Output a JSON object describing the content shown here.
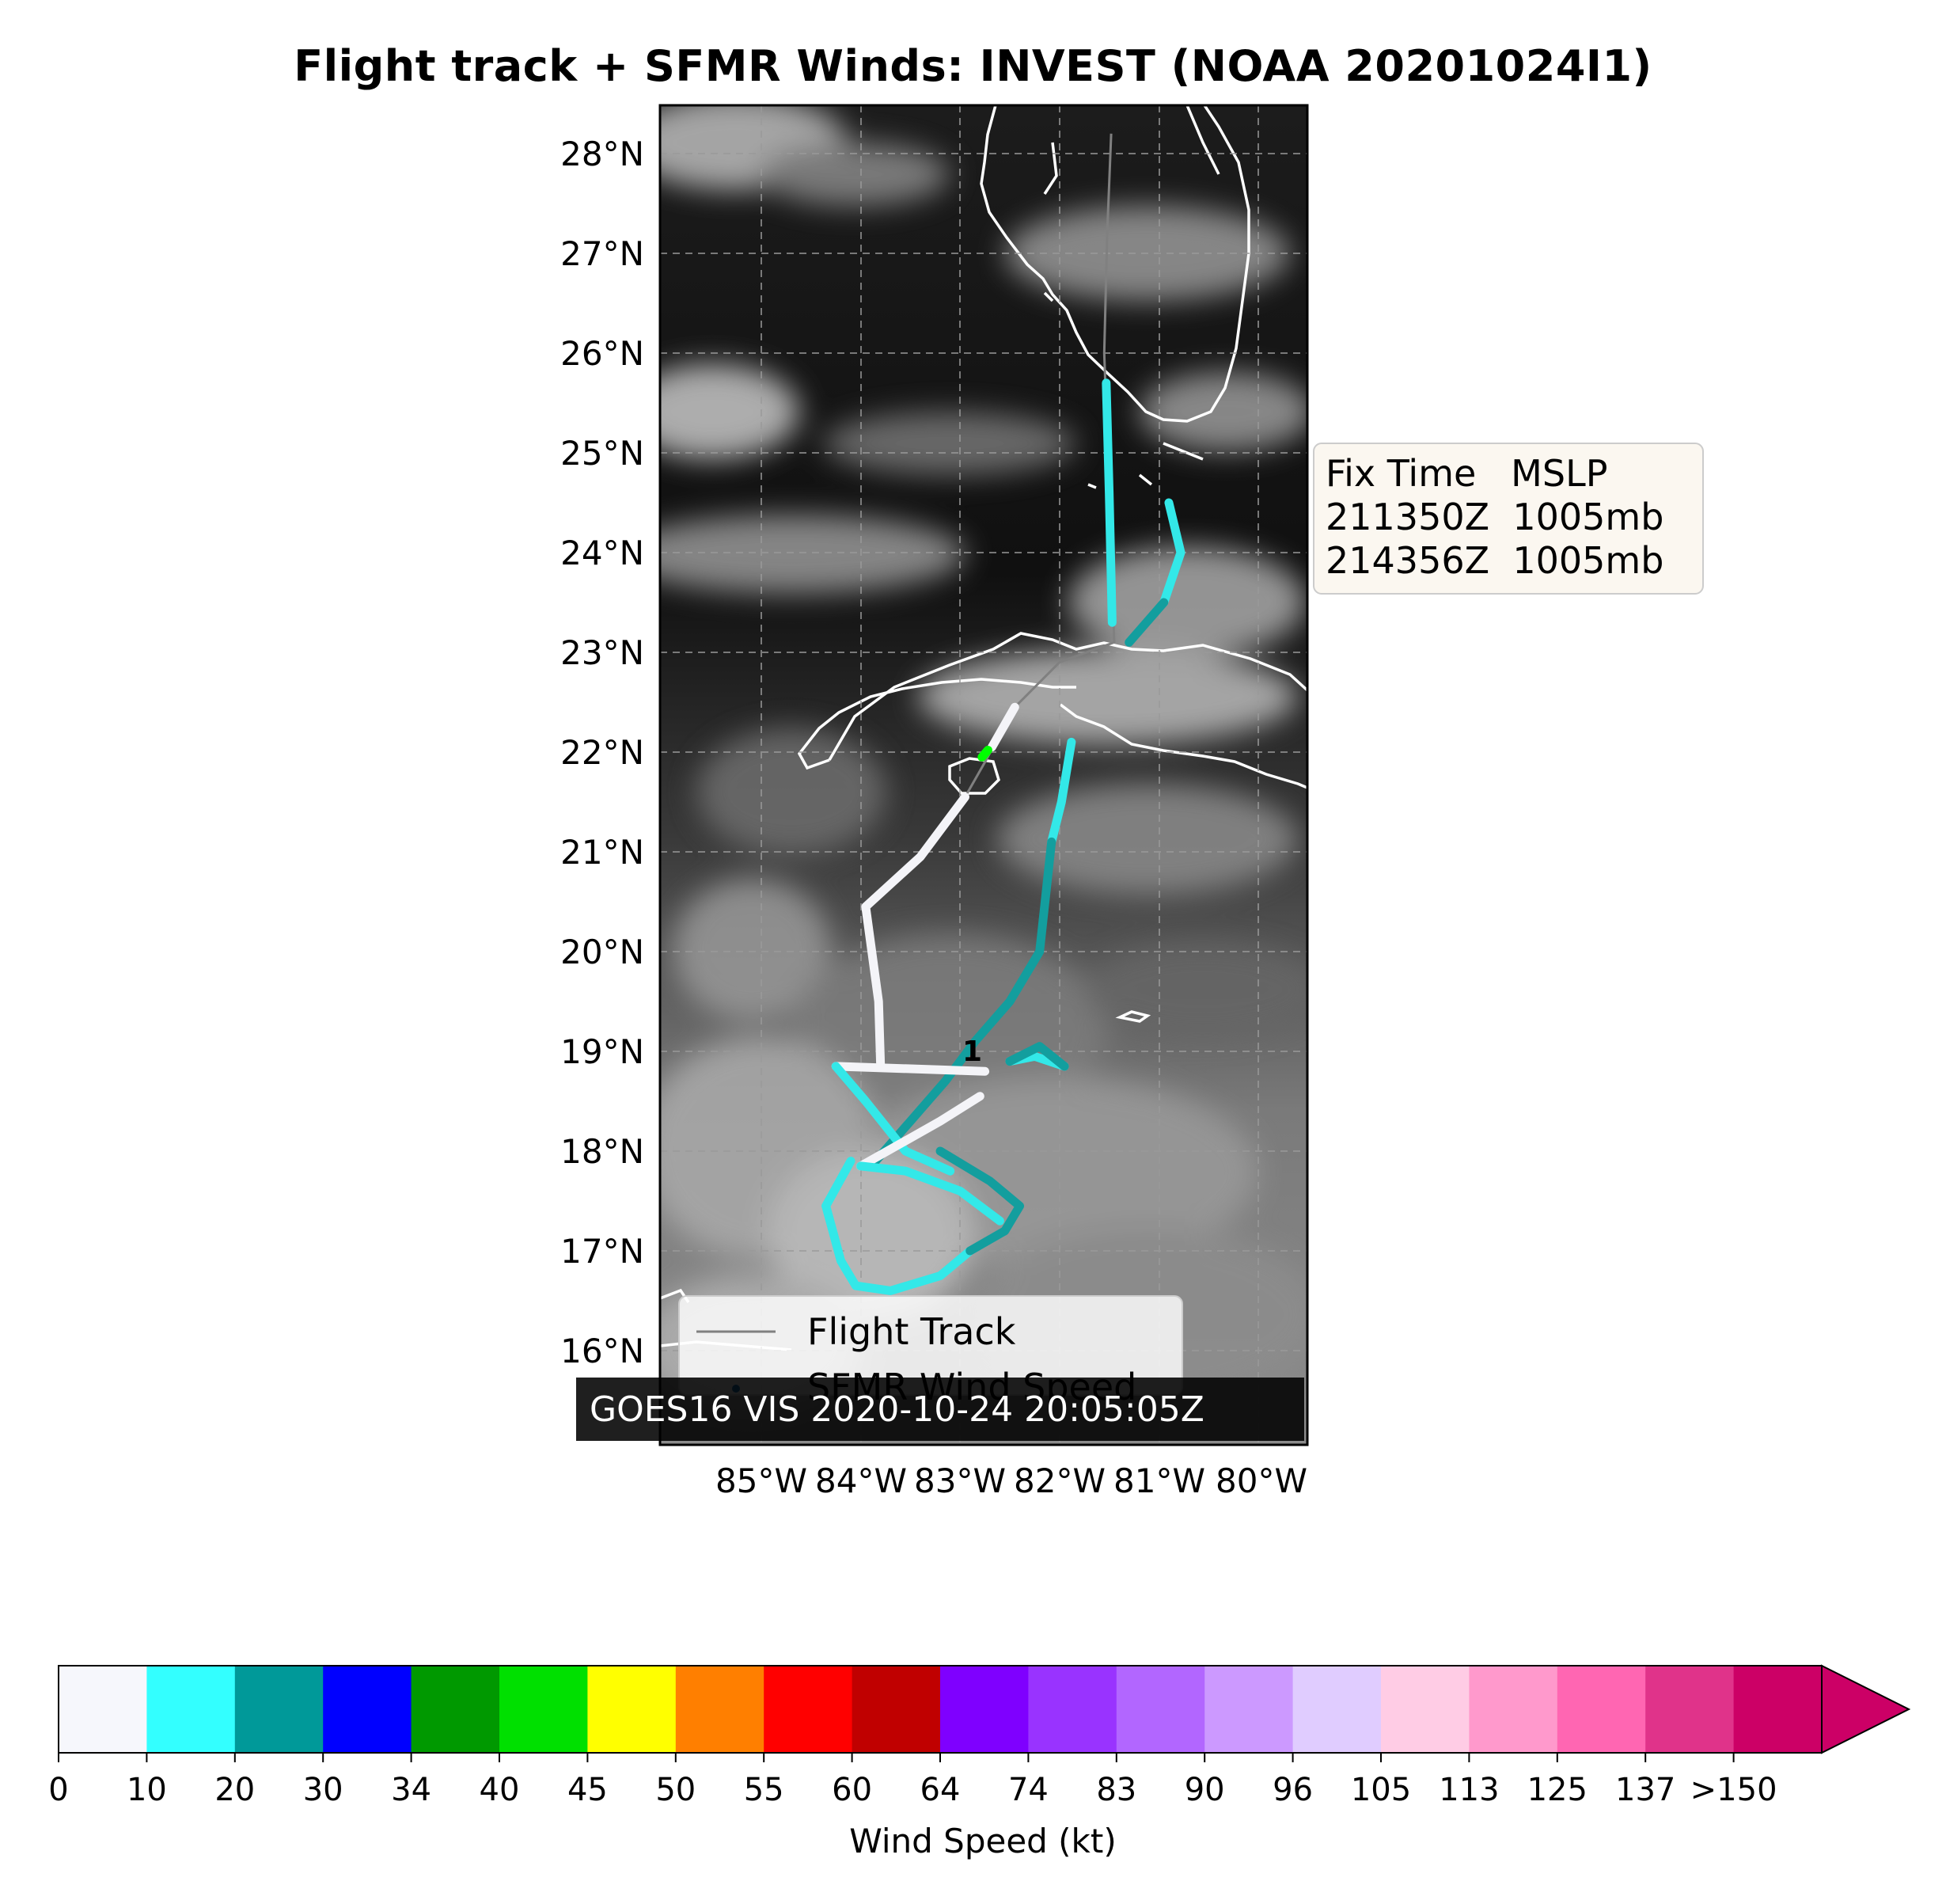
{
  "title": "Flight track + SFMR Winds: INVEST (NOAA 20201024I1)",
  "map": {
    "lat_labels": [
      "28°N",
      "27°N",
      "26°N",
      "25°N",
      "24°N",
      "23°N",
      "22°N",
      "21°N",
      "20°N",
      "19°N",
      "18°N",
      "17°N",
      "16°N"
    ],
    "lon_labels": [
      "85°W",
      "84°W",
      "83°W",
      "82°W",
      "81°W",
      "80°W"
    ],
    "lat_range": [
      15.0,
      28.5
    ],
    "lon_range": [
      -85.9,
      -79.4
    ],
    "gridlines": true,
    "background": "GOES16 visible satellite imagery (grayscale)",
    "image_label": "GOES16 VIS 2020-10-24 20:05:05Z",
    "center_marker": "1"
  },
  "fix_box": {
    "header": "Fix Time   MSLP",
    "rows": [
      "211350Z  1005mb",
      "214356Z  1005mb"
    ]
  },
  "legend": {
    "track_label": "Flight Track",
    "sfmr_label": "SFMR Wind Speed",
    "track_color": "#808080",
    "sfmr_color": "#1f77b4"
  },
  "colorbar": {
    "title": "Wind Speed (kt)",
    "labels": [
      "0",
      "10",
      "20",
      "30",
      "34",
      "40",
      "45",
      "50",
      "55",
      "60",
      "64",
      "74",
      "83",
      "90",
      "96",
      "105",
      "113",
      "125",
      "137",
      ">150"
    ],
    "colors": [
      "#f6f7fc",
      "#33ffff",
      "#009999",
      "#0000ff",
      "#009900",
      "#00e000",
      "#ffff00",
      "#ff7f00",
      "#ff0000",
      "#c00000",
      "#7f00ff",
      "#9933ff",
      "#b266ff",
      "#cc99ff",
      "#e0ccff",
      "#ffcce5",
      "#ff99cc",
      "#ff66b2",
      "#e0338a",
      "#cc0066"
    ],
    "extend_color": "#cc0066"
  },
  "segments": [
    {
      "color": "#33e8e8",
      "pts": [
        [
          -81.53,
          25.7
        ],
        [
          -81.5,
          24.6
        ],
        [
          -81.47,
          23.3
        ]
      ]
    },
    {
      "color": "#33e8e8",
      "pts": [
        [
          -80.9,
          24.5
        ],
        [
          -80.78,
          24.0
        ],
        [
          -80.95,
          23.5
        ]
      ]
    },
    {
      "color": "#139e9e",
      "pts": [
        [
          -80.95,
          23.5
        ],
        [
          -81.3,
          23.1
        ]
      ]
    },
    {
      "color": "#f4f4f8",
      "pts": [
        [
          -82.45,
          22.45
        ],
        [
          -82.68,
          22.05
        ]
      ]
    },
    {
      "color": "#00ff00",
      "pts": [
        [
          -82.72,
          22.02
        ],
        [
          -82.78,
          21.95
        ]
      ]
    },
    {
      "color": "#33e8e8",
      "pts": [
        [
          -81.88,
          22.1
        ],
        [
          -81.98,
          21.5
        ],
        [
          -82.08,
          21.1
        ]
      ]
    },
    {
      "color": "#139e9e",
      "pts": [
        [
          -82.08,
          21.1
        ],
        [
          -82.2,
          20.0
        ],
        [
          -82.5,
          19.5
        ],
        [
          -82.85,
          19.1
        ],
        [
          -83.15,
          18.7
        ],
        [
          -83.5,
          18.3
        ],
        [
          -83.85,
          17.9
        ]
      ]
    },
    {
      "color": "#f4f4f8",
      "pts": [
        [
          -82.95,
          21.55
        ],
        [
          -83.4,
          20.95
        ],
        [
          -83.95,
          20.45
        ],
        [
          -83.82,
          19.5
        ],
        [
          -83.8,
          18.85
        ]
      ]
    },
    {
      "color": "#f4f4f8",
      "pts": [
        [
          -84.25,
          18.85
        ],
        [
          -82.75,
          18.8
        ]
      ]
    },
    {
      "color": "#33e8e8",
      "pts": [
        [
          -84.25,
          18.85
        ],
        [
          -83.95,
          18.5
        ],
        [
          -83.55,
          18.0
        ],
        [
          -83.1,
          17.8
        ]
      ]
    },
    {
      "color": "#f4f4f8",
      "pts": [
        [
          -84.0,
          17.85
        ],
        [
          -83.2,
          18.3
        ],
        [
          -82.8,
          18.55
        ]
      ]
    },
    {
      "color": "#33e8e8",
      "pts": [
        [
          -84.35,
          17.45
        ],
        [
          -84.2,
          16.9
        ],
        [
          -84.05,
          16.65
        ],
        [
          -83.7,
          16.6
        ],
        [
          -83.2,
          16.75
        ],
        [
          -82.9,
          17.0
        ]
      ]
    },
    {
      "color": "#139e9e",
      "pts": [
        [
          -82.9,
          17.0
        ],
        [
          -82.55,
          17.2
        ],
        [
          -82.4,
          17.45
        ],
        [
          -82.7,
          17.7
        ],
        [
          -83.2,
          18.0
        ]
      ]
    },
    {
      "color": "#33e8e8",
      "pts": [
        [
          -82.5,
          18.9
        ],
        [
          -82.25,
          18.95
        ],
        [
          -81.95,
          18.85
        ]
      ]
    },
    {
      "color": "#139e9e",
      "pts": [
        [
          -81.95,
          18.85
        ],
        [
          -82.2,
          19.05
        ],
        [
          -82.5,
          18.9
        ]
      ]
    },
    {
      "color": "#33e8e8",
      "pts": [
        [
          -84.0,
          17.85
        ],
        [
          -83.55,
          17.8
        ],
        [
          -83.0,
          17.6
        ],
        [
          -82.6,
          17.3
        ]
      ]
    },
    {
      "color": "#33e8e8",
      "pts": [
        [
          -84.35,
          17.45
        ],
        [
          -84.1,
          17.9
        ]
      ]
    }
  ]
}
